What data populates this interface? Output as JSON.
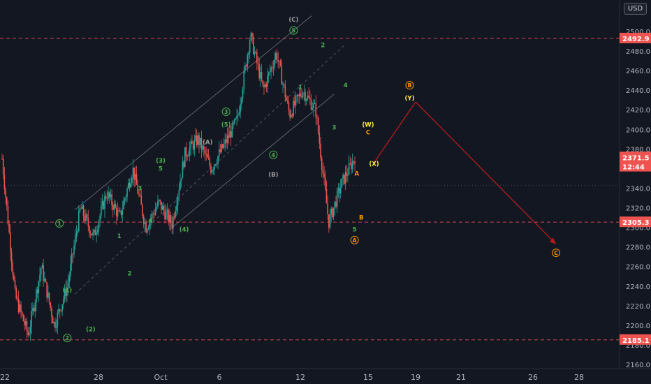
{
  "currency_button": "USD",
  "x_axis_labels": [
    {
      "label": "22",
      "day": 22
    },
    {
      "label": "28",
      "day": 28
    },
    {
      "label": "Oct",
      "day": 31
    },
    {
      "label": "6",
      "day": 36
    },
    {
      "label": "12",
      "day": 42
    },
    {
      "label": "15",
      "day": 45
    },
    {
      "label": "19",
      "day": 49
    },
    {
      "label": "21",
      "day": 51
    },
    {
      "label": "26",
      "day": 56
    },
    {
      "label": "28",
      "day": 58
    }
  ],
  "y_axis_ticks": [
    2160,
    2180,
    2200,
    2220,
    2240,
    2260,
    2280,
    2300,
    2320,
    2340,
    2360,
    2380,
    2400,
    2420,
    2440,
    2460,
    2480,
    2500
  ],
  "price_tags": [
    {
      "value": "2492.9",
      "price": 2492.9,
      "color": "#ef5350"
    },
    {
      "value": "2371.5",
      "price": 2371.5,
      "color": "#ef5350"
    },
    {
      "value": "12:44",
      "price": 2362,
      "color": "#ef5350"
    },
    {
      "value": "2305.3",
      "price": 2305.3,
      "color": "#ef5350"
    },
    {
      "value": "2185.1",
      "price": 2185.1,
      "color": "#ef5350"
    }
  ],
  "chart_data": {
    "type": "candlestick",
    "x_unit": "day",
    "ylim": [
      2150,
      2510
    ],
    "candles_key": [
      2370,
      2230,
      2190,
      2260,
      2200,
      2240,
      2320,
      2290,
      2335,
      2310,
      2360,
      2300,
      2325,
      2303,
      2375,
      2390,
      2360,
      2384,
      2410,
      2496,
      2440,
      2478,
      2415,
      2440,
      2420,
      2305,
      2345,
      2371.5
    ],
    "horizontal_levels": [
      {
        "price": 2492.9,
        "style": "dashed",
        "color": "#ef5350"
      },
      {
        "price": 2305.3,
        "style": "dashed",
        "color": "#ef5350"
      },
      {
        "price": 2185.1,
        "style": "dashed",
        "color": "#ef5350"
      },
      {
        "price": 2343,
        "style": "dotted",
        "color": "#5d606b"
      }
    ],
    "projection": [
      {
        "day": 45.5,
        "price": 2366
      },
      {
        "day": 49,
        "price": 2428
      },
      {
        "day": 57,
        "price": 2283
      }
    ],
    "wave_labels": [
      {
        "text": "1",
        "day": 25.5,
        "price": 2304,
        "color": "#4caf50",
        "circle": true
      },
      {
        "text": "(1)",
        "day": 26,
        "price": 2236,
        "color": "#4caf50"
      },
      {
        "text": "2",
        "day": 26,
        "price": 2187,
        "color": "#4caf50",
        "circle": true
      },
      {
        "text": "(2)",
        "day": 27.5,
        "price": 2196,
        "color": "#4caf50"
      },
      {
        "text": "1",
        "day": 29,
        "price": 2291,
        "color": "#4caf50"
      },
      {
        "text": "2",
        "day": 29.5,
        "price": 2253,
        "color": "#4caf50"
      },
      {
        "text": "3",
        "day": 30,
        "price": 2340,
        "color": "#4caf50"
      },
      {
        "text": "4",
        "day": 30.5,
        "price": 2307,
        "color": "#4caf50"
      },
      {
        "text": "5",
        "day": 31,
        "price": 2360,
        "color": "#4caf50"
      },
      {
        "text": "(3)",
        "day": 31,
        "price": 2368,
        "color": "#4caf50"
      },
      {
        "text": "(4)",
        "day": 33,
        "price": 2298,
        "color": "#4caf50"
      },
      {
        "text": "(A)",
        "day": 35,
        "price": 2387,
        "color": "#9e9e9e"
      },
      {
        "text": "3",
        "day": 36.5,
        "price": 2418,
        "color": "#4caf50",
        "circle": true
      },
      {
        "text": "(5)",
        "day": 36.5,
        "price": 2405,
        "color": "#4caf50"
      },
      {
        "text": "(B)",
        "day": 40,
        "price": 2354,
        "color": "#9e9e9e"
      },
      {
        "text": "4",
        "day": 40,
        "price": 2374,
        "color": "#4caf50",
        "circle": true
      },
      {
        "text": "(C)",
        "day": 41.5,
        "price": 2512,
        "color": "#9e9e9e"
      },
      {
        "text": "5",
        "day": 41.5,
        "price": 2501,
        "color": "#4caf50",
        "circle": true
      },
      {
        "text": "1",
        "day": 42,
        "price": 2443,
        "color": "#4caf50"
      },
      {
        "text": "2",
        "day": 43,
        "price": 2486,
        "color": "#4caf50"
      },
      {
        "text": "3",
        "day": 43.5,
        "price": 2402,
        "color": "#4caf50"
      },
      {
        "text": "4",
        "day": 44,
        "price": 2445,
        "color": "#4caf50"
      },
      {
        "text": "A",
        "day": 44.5,
        "price": 2355,
        "color": "#ff9800"
      },
      {
        "text": "B",
        "day": 44.7,
        "price": 2310,
        "color": "#ff9800"
      },
      {
        "text": "5",
        "day": 44.4,
        "price": 2298,
        "color": "#4caf50"
      },
      {
        "text": "A",
        "day": 44.4,
        "price": 2287,
        "color": "#ff9800",
        "circle": true
      },
      {
        "text": "(W)",
        "day": 45,
        "price": 2405,
        "color": "#ffeb3b"
      },
      {
        "text": "C",
        "day": 45,
        "price": 2397,
        "color": "#ff9800"
      },
      {
        "text": "(X)",
        "day": 45.5,
        "price": 2365,
        "color": "#ffeb3b"
      },
      {
        "text": "B",
        "day": 48.5,
        "price": 2445,
        "color": "#ff9800",
        "circle": true
      },
      {
        "text": "(Y)",
        "day": 48.5,
        "price": 2432,
        "color": "#ffeb3b"
      },
      {
        "text": "C",
        "day": 57,
        "price": 2274,
        "color": "#ff9800",
        "circle": true
      }
    ]
  }
}
